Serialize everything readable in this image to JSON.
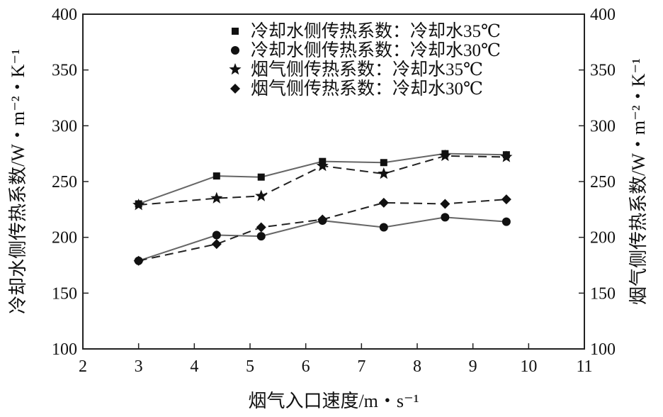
{
  "chart_data": {
    "type": "line",
    "xlabel": "烟气入口速度/m・s⁻¹",
    "ylabel_left": "冷却水侧传热系数/W・m⁻²・K⁻¹",
    "ylabel_right": "烟气侧传热系数/W・m⁻²・K⁻¹",
    "xlim": [
      2,
      11
    ],
    "ylim": [
      100,
      400
    ],
    "xticks": [
      "2",
      "3",
      "4",
      "5",
      "6",
      "7",
      "8",
      "9",
      "10",
      "11"
    ],
    "yticks_left": [
      "100",
      "150",
      "200",
      "250",
      "300",
      "350",
      "400"
    ],
    "yticks_right": [
      "100",
      "150",
      "200",
      "250",
      "300",
      "350",
      "400"
    ],
    "grid": false,
    "legend_position": "top-right",
    "series": [
      {
        "name": "冷却水侧传热系数：冷却水35℃",
        "marker": "square",
        "line": "solid",
        "axis": "left",
        "x": [
          3.0,
          4.4,
          5.2,
          6.3,
          7.4,
          8.5,
          9.6
        ],
        "y": [
          230,
          255,
          254,
          268,
          267,
          275,
          274
        ]
      },
      {
        "name": "冷却水侧传热系数：冷却水30℃",
        "marker": "circle",
        "line": "solid",
        "axis": "left",
        "x": [
          3.0,
          4.4,
          5.2,
          6.3,
          7.4,
          8.5,
          9.6
        ],
        "y": [
          179,
          202,
          201,
          215,
          209,
          218,
          214
        ]
      },
      {
        "name": "烟气侧传热系数：冷却水35℃",
        "marker": "star",
        "line": "dashed",
        "axis": "right",
        "x": [
          3.0,
          4.4,
          5.2,
          6.3,
          7.4,
          8.5,
          9.6
        ],
        "y": [
          229,
          235,
          237,
          264,
          257,
          273,
          272
        ]
      },
      {
        "name": "烟气侧传热系数：冷却水30℃",
        "marker": "diamond",
        "line": "dashed",
        "axis": "right",
        "x": [
          3.0,
          4.4,
          5.2,
          6.3,
          7.4,
          8.5,
          9.6
        ],
        "y": [
          179,
          194,
          209,
          216,
          231,
          230,
          234
        ]
      }
    ]
  }
}
